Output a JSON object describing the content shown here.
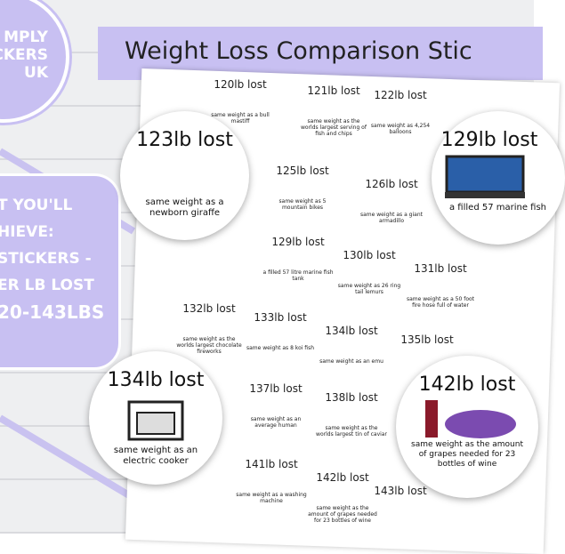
{
  "logo": {
    "lines": [
      "MPLY",
      "CKERS",
      "UK"
    ]
  },
  "banner": {
    "title": "Weight Loss Comparison Stic"
  },
  "promo": {
    "lines": [
      "T YOU'LL",
      "HIEVE:",
      "STICKERS -",
      "ER LB LOST",
      "20-143LBS"
    ]
  },
  "big_stickers": [
    {
      "heading": "123lb lost",
      "caption": "same weight as a newborn giraffe"
    },
    {
      "heading": "129lb lost",
      "caption": "a filled 57 marine fish"
    },
    {
      "heading": "134lb lost",
      "caption": "same weight as an electric cooker"
    },
    {
      "heading": "142lb lost",
      "caption": "same weight as the amount of grapes needed for 23 bottles of wine"
    }
  ],
  "small_stickers": [
    {
      "heading": "120lb lost",
      "caption": "same weight as a bull mastiff"
    },
    {
      "heading": "121lb lost",
      "caption": "same weight as the worlds largest serving of fish and chips"
    },
    {
      "heading": "122lb lost",
      "caption": "same weight as 4,254 balloons"
    },
    {
      "heading": "125lb lost",
      "caption": "same weight as 5 mountain bikes"
    },
    {
      "heading": "126lb lost",
      "caption": "same weight as a giant armadillo"
    },
    {
      "heading": "129lb lost",
      "caption": "a filled 57 litre marine fish tank"
    },
    {
      "heading": "130lb lost",
      "caption": "same weight as 26 ring tail lemurs"
    },
    {
      "heading": "131lb lost",
      "caption": "same weight as a 50 foot fire hose full of water"
    },
    {
      "heading": "132lb lost",
      "caption": "same weight as the worlds largest chocolate fireworks"
    },
    {
      "heading": "133lb lost",
      "caption": "same weight as 8 koi fish"
    },
    {
      "heading": "134lb lost",
      "caption": "same weight as an emu"
    },
    {
      "heading": "135lb lost",
      "caption": ""
    },
    {
      "heading": "137lb lost",
      "caption": "same weight as an average human"
    },
    {
      "heading": "138lb lost",
      "caption": "same weight as the worlds largest tin of caviar"
    },
    {
      "heading": "141lb lost",
      "caption": "same weight as a washing machine"
    },
    {
      "heading": "142lb lost",
      "caption": "same weight as the amount of grapes needed for 23 bottles of wine"
    },
    {
      "heading": "143lb lost",
      "caption": ""
    }
  ]
}
